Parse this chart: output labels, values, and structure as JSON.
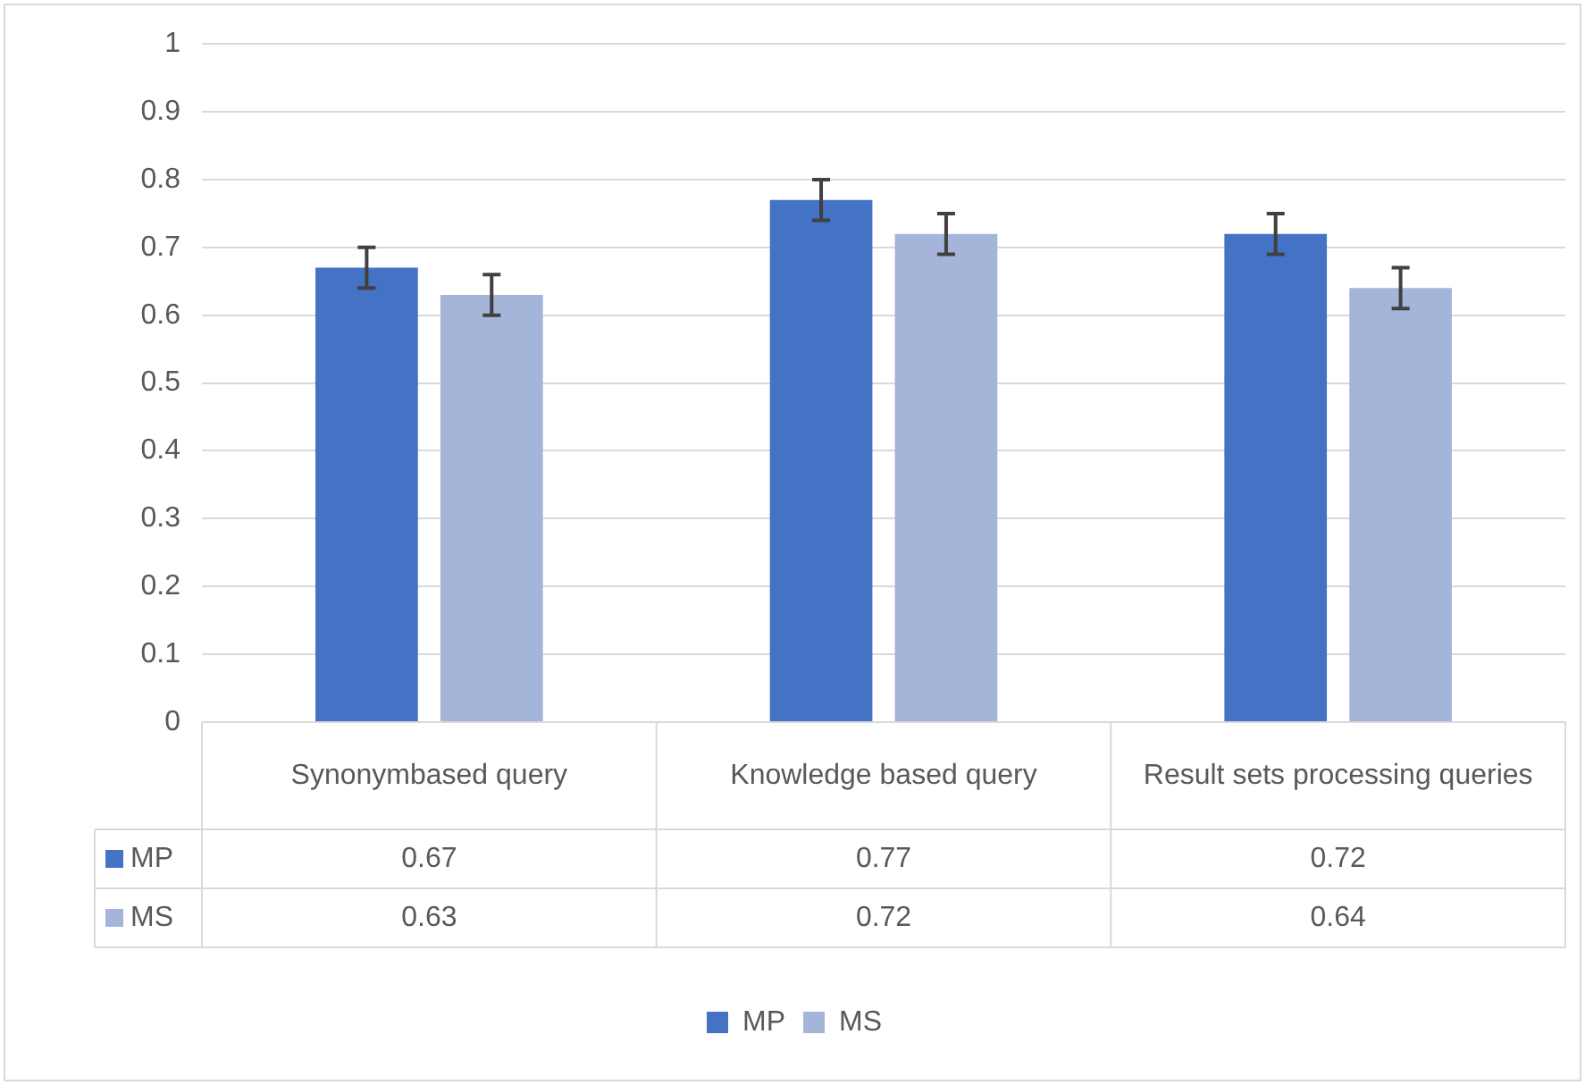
{
  "chart_data": {
    "type": "bar",
    "categories": [
      "Synonymbased query",
      "Knowledge based query",
      "Result sets processing queries"
    ],
    "series": [
      {
        "name": "MP",
        "color": "#4472c4",
        "values": [
          0.67,
          0.77,
          0.72
        ],
        "errors": [
          0.03,
          0.03,
          0.03
        ]
      },
      {
        "name": "MS",
        "color": "#a5b4d9",
        "values": [
          0.63,
          0.72,
          0.64
        ],
        "errors": [
          0.03,
          0.03,
          0.03
        ]
      }
    ],
    "ylim": [
      0,
      1
    ],
    "yticks": [
      0,
      0.1,
      0.2,
      0.3,
      0.4,
      0.5,
      0.6,
      0.7,
      0.8,
      0.9,
      1
    ],
    "grid": "y",
    "legend": "bottom",
    "data_labels": true
  }
}
